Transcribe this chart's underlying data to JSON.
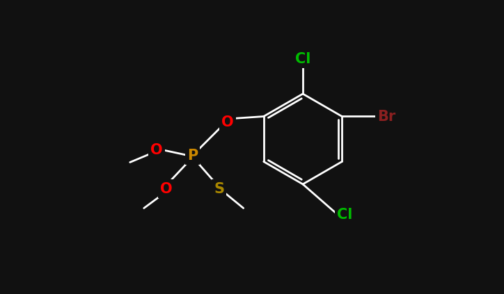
{
  "bg_color": "#111111",
  "bond_color": "#ffffff",
  "atom_colors": {
    "Cl": "#00bb00",
    "Br": "#8b2020",
    "O": "#ff0000",
    "P": "#cc8800",
    "S": "#aa8800"
  },
  "lw": 2.0,
  "fontsize": 15
}
